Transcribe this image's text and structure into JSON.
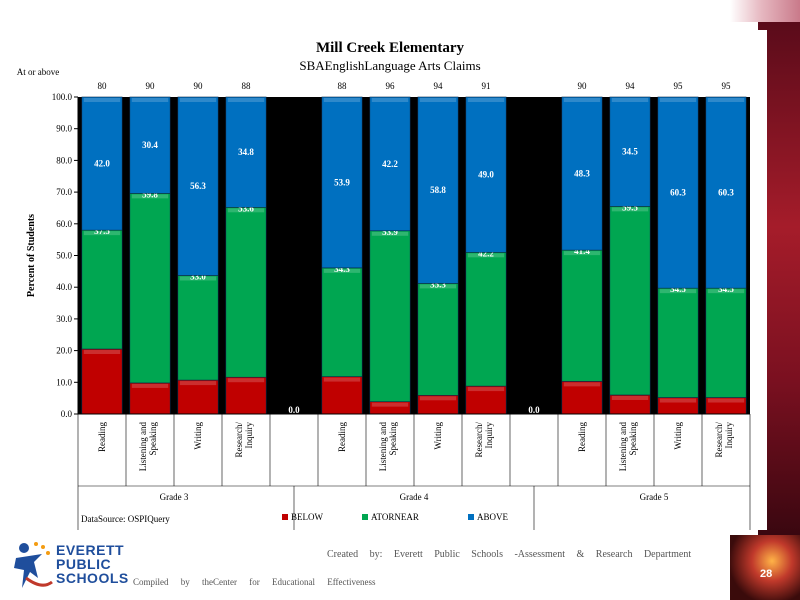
{
  "chart_data": {
    "type": "bar",
    "stacked": true,
    "title": "Mill Creek Elementary",
    "subtitle": "SBAEnglishLanguage  Arts Claims",
    "ylabel": "Percent   of   Students",
    "ylim": [
      0,
      100
    ],
    "yticks": [
      "0.0",
      "10.0",
      "20.0",
      "30.0",
      "40.0",
      "50.0",
      "60.0",
      "70.0",
      "80.0",
      "90.0",
      "100.0"
    ],
    "top_header_label": "At  or  above",
    "data_source": "DataSource:  OSPIQuery",
    "colors": {
      "below": "#c00000",
      "near": "#00a651",
      "above": "#0070c0",
      "plot_bg": "#000000"
    },
    "legend": [
      "BELOW",
      "ATORNEAR",
      "ABOVE"
    ],
    "legend_position": "bottom",
    "groups": [
      {
        "name": "Grade 3",
        "categories": [
          "Reading",
          "Listening and Speaking",
          "Writing",
          "Research/ Inquiry"
        ]
      },
      {
        "name": "Grade 4",
        "categories": [
          "Reading",
          "Listening and Speaking",
          "Writing",
          "Research/ Inquiry"
        ]
      },
      {
        "name": "Grade 5",
        "categories": [
          "Reading",
          "Listening and Speaking",
          "Writing",
          "Research/ Inquiry"
        ]
      }
    ],
    "gap_labels": [
      "0.0",
      "0.0"
    ],
    "series": [
      {
        "name": "BELOW",
        "values": [
          20.5,
          9.8,
          10.7,
          11.6,
          11.8,
          3.9,
          5.9,
          8.8,
          10.3,
          6.0,
          5.2,
          5.2
        ]
      },
      {
        "name": "ATORNEAR",
        "values": [
          37.5,
          59.8,
          33.0,
          53.6,
          34.3,
          53.9,
          35.3,
          42.2,
          41.4,
          59.5,
          34.5,
          34.5
        ]
      },
      {
        "name": "ABOVE",
        "values": [
          42.0,
          30.4,
          56.3,
          34.8,
          53.9,
          42.2,
          58.8,
          49.0,
          48.3,
          34.5,
          60.3,
          60.3
        ]
      }
    ],
    "at_or_above_totals": [
      "80",
      "90",
      "90",
      "88",
      "88",
      "96",
      "94",
      "91",
      "90",
      "94",
      "95",
      "95"
    ]
  },
  "footer": {
    "credit": "Created   by:  Everett   Public   Schools   -Assessment    &  Research    Department",
    "compiled": "Compiled  by  theCenter   for  Educational   Effectiveness",
    "page_number": "28",
    "logo_lines": [
      "EVERETT",
      "PUBLIC",
      "SCHOOLS"
    ]
  }
}
